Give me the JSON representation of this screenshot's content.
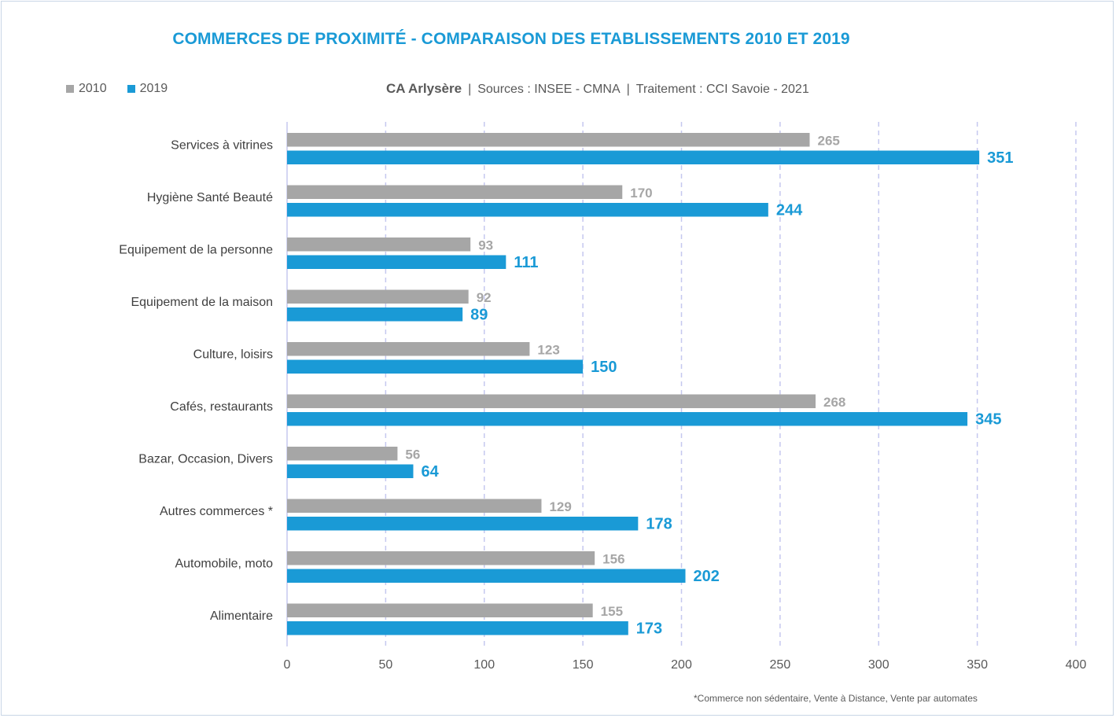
{
  "title": "COMMERCES DE PROXIMITÉ - COMPARAISON DES ETABLISSEMENTS 2010 ET 2019",
  "subtitle": {
    "territory": "CA Arlysère",
    "sep1": "|",
    "sources": "Sources : INSEE - CMNA",
    "sep2": "|",
    "processing": "Traitement : CCI Savoie - 2021"
  },
  "legend": [
    {
      "name": "2010",
      "color": "#a6a6a6"
    },
    {
      "name": "2019",
      "color": "#1a9ad6"
    }
  ],
  "footnote": "*Commerce non sédentaire, Vente à Distance, Vente par automates",
  "chart_data": {
    "type": "bar",
    "orientation": "horizontal",
    "title": "COMMERCES DE PROXIMITÉ - COMPARAISON DES ETABLISSEMENTS 2010 ET 2019",
    "categories": [
      "Services à vitrines",
      "Hygiène Santé Beauté",
      "Equipement de la personne",
      "Equipement de la maison",
      "Culture, loisirs",
      "Cafés, restaurants",
      "Bazar, Occasion, Divers",
      "Autres commerces *",
      "Automobile, moto",
      "Alimentaire"
    ],
    "series": [
      {
        "name": "2010",
        "color": "#a6a6a6",
        "values": [
          265,
          170,
          93,
          92,
          123,
          268,
          56,
          129,
          156,
          155
        ]
      },
      {
        "name": "2019",
        "color": "#1a9ad6",
        "values": [
          351,
          244,
          111,
          89,
          150,
          345,
          64,
          178,
          202,
          173
        ]
      }
    ],
    "xlim": [
      0,
      400
    ],
    "xticks": [
      0,
      50,
      100,
      150,
      200,
      250,
      300,
      350,
      400
    ],
    "grid": "vertical dashed",
    "legend_position": "top-left"
  }
}
